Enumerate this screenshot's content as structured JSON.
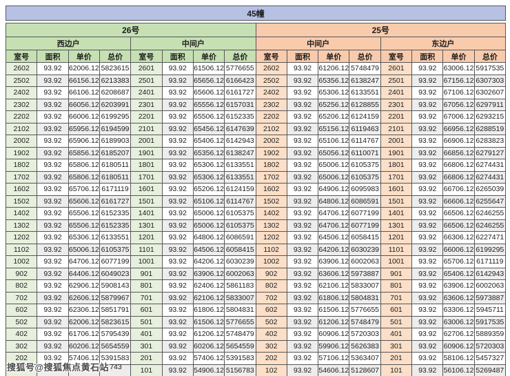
{
  "title": "45幢",
  "units": [
    {
      "label": "26号",
      "sides": [
        "西边户",
        "中间户"
      ]
    },
    {
      "label": "25号",
      "sides": [
        "中间户",
        "东边户"
      ]
    }
  ],
  "column_headers": [
    "室号",
    "面积",
    "单价",
    "总价"
  ],
  "watermark": {
    "text": "搜狐号@搜狐焦点黄石站",
    "visible_digits": "743"
  },
  "colors": {
    "page_bg": "#ffffff",
    "title_bg": "#b7c1e3",
    "green_header_bg": "#c6e0b4",
    "green_room_bg": "#e7f0dd",
    "peach_header_bg": "#f8cbad",
    "peach_room_bg": "#fbdfc8",
    "stripe_bg": "#ededed",
    "border": "#555555",
    "text": "#1c1c1c",
    "watermark_color": "#4a4a4a"
  },
  "rows": [
    [
      "2602",
      "93.92",
      "62006.12",
      "5823615",
      "2601",
      "93.92",
      "61506.12",
      "5776655",
      "2602",
      "93.92",
      "61206.12",
      "5748479",
      "2601",
      "93.92",
      "63006.12",
      "5917535"
    ],
    [
      "2502",
      "93.92",
      "66156.12",
      "6213383",
      "2501",
      "93.92",
      "65656.12",
      "6166423",
      "2502",
      "93.92",
      "65356.12",
      "6138247",
      "2501",
      "93.92",
      "67156.12",
      "6307303"
    ],
    [
      "2402",
      "93.92",
      "66106.12",
      "6208687",
      "2401",
      "93.92",
      "65606.12",
      "6161727",
      "2402",
      "93.92",
      "65306.12",
      "6133551",
      "2401",
      "93.92",
      "67106.12",
      "6302607"
    ],
    [
      "2302",
      "93.92",
      "66056.12",
      "6203991",
      "2301",
      "93.92",
      "65556.12",
      "6157031",
      "2302",
      "93.92",
      "65256.12",
      "6128855",
      "2301",
      "93.92",
      "67056.12",
      "6297911"
    ],
    [
      "2202",
      "93.92",
      "66006.12",
      "6199295",
      "2201",
      "93.92",
      "65506.12",
      "6152335",
      "2202",
      "93.92",
      "65206.12",
      "6124159",
      "2201",
      "93.92",
      "67006.12",
      "6293215"
    ],
    [
      "2102",
      "93.92",
      "65956.12",
      "6194599",
      "2101",
      "93.92",
      "65456.12",
      "6147639",
      "2102",
      "93.92",
      "65156.12",
      "6119463",
      "2101",
      "93.92",
      "66956.12",
      "6288519"
    ],
    [
      "2002",
      "93.92",
      "65906.12",
      "6189903",
      "2001",
      "93.92",
      "65406.12",
      "6142943",
      "2002",
      "93.92",
      "65106.12",
      "6114767",
      "2001",
      "93.92",
      "66906.12",
      "6283823"
    ],
    [
      "1902",
      "93.92",
      "65856.12",
      "6185207",
      "1901",
      "93.92",
      "65356.12",
      "6138247",
      "1902",
      "93.92",
      "65056.12",
      "6110071",
      "1901",
      "93.92",
      "66856.12",
      "6279127"
    ],
    [
      "1802",
      "93.92",
      "65806.12",
      "6180511",
      "1801",
      "93.92",
      "65306.12",
      "6133551",
      "1802",
      "93.92",
      "65006.12",
      "6105375",
      "1801",
      "93.92",
      "66806.12",
      "6274431"
    ],
    [
      "1702",
      "93.92",
      "65806.12",
      "6180511",
      "1701",
      "93.92",
      "65306.12",
      "6133551",
      "1702",
      "93.92",
      "65006.12",
      "6105375",
      "1701",
      "93.92",
      "66806.12",
      "6274431"
    ],
    [
      "1602",
      "93.92",
      "65706.12",
      "6171119",
      "1601",
      "93.92",
      "65206.12",
      "6124159",
      "1602",
      "93.92",
      "64906.12",
      "6095983",
      "1601",
      "93.92",
      "66706.12",
      "6265039"
    ],
    [
      "1502",
      "93.92",
      "65606.12",
      "6161727",
      "1501",
      "93.92",
      "65106.12",
      "6114767",
      "1502",
      "93.92",
      "64806.12",
      "6086591",
      "1501",
      "93.92",
      "66606.12",
      "6255647"
    ],
    [
      "1402",
      "93.92",
      "65506.12",
      "6152335",
      "1401",
      "93.92",
      "65006.12",
      "6105375",
      "1402",
      "93.92",
      "64706.12",
      "6077199",
      "1401",
      "93.92",
      "66506.12",
      "6246255"
    ],
    [
      "1302",
      "93.92",
      "65506.12",
      "6152335",
      "1301",
      "93.92",
      "65006.12",
      "6105375",
      "1302",
      "93.92",
      "64706.12",
      "6077199",
      "1301",
      "93.92",
      "66506.12",
      "6246255"
    ],
    [
      "1202",
      "93.92",
      "65306.12",
      "6133551",
      "1201",
      "93.92",
      "64806.12",
      "6086591",
      "1202",
      "93.92",
      "64506.12",
      "6058415",
      "1201",
      "93.92",
      "66306.12",
      "6227471"
    ],
    [
      "1102",
      "93.92",
      "65006.12",
      "6105375",
      "1101",
      "93.92",
      "64506.12",
      "6058415",
      "1102",
      "93.92",
      "64206.12",
      "6030239",
      "1101",
      "93.92",
      "66006.12",
      "6199295"
    ],
    [
      "1002",
      "93.92",
      "64706.12",
      "6077199",
      "1001",
      "93.92",
      "64206.12",
      "6030239",
      "1002",
      "93.92",
      "63906.12",
      "6002063",
      "1001",
      "93.92",
      "65706.12",
      "6171119"
    ],
    [
      "902",
      "93.92",
      "64406.12",
      "6049023",
      "901",
      "93.92",
      "63906.12",
      "6002063",
      "902",
      "93.92",
      "63606.12",
      "5973887",
      "901",
      "93.92",
      "65406.12",
      "6142943"
    ],
    [
      "802",
      "93.92",
      "62906.12",
      "5908143",
      "801",
      "93.92",
      "62406.12",
      "5861183",
      "802",
      "93.92",
      "62106.12",
      "5833007",
      "801",
      "93.92",
      "63906.12",
      "6002063"
    ],
    [
      "702",
      "93.92",
      "62606.12",
      "5879967",
      "701",
      "93.92",
      "62106.12",
      "5833007",
      "702",
      "93.92",
      "61806.12",
      "5804831",
      "701",
      "93.92",
      "63606.12",
      "5973887"
    ],
    [
      "602",
      "93.92",
      "62306.12",
      "5851791",
      "601",
      "93.92",
      "61806.12",
      "5804831",
      "602",
      "93.92",
      "61506.12",
      "5776655",
      "601",
      "93.92",
      "63306.12",
      "5945711"
    ],
    [
      "502",
      "93.92",
      "62006.12",
      "5823615",
      "501",
      "93.92",
      "61506.12",
      "5776655",
      "502",
      "93.92",
      "61206.12",
      "5748479",
      "501",
      "93.92",
      "63006.12",
      "5917535"
    ],
    [
      "402",
      "93.92",
      "61706.12",
      "5795439",
      "401",
      "93.92",
      "61206.12",
      "5748479",
      "402",
      "93.92",
      "60906.12",
      "5720303",
      "401",
      "93.92",
      "62706.12",
      "5889359"
    ],
    [
      "302",
      "93.92",
      "60206.12",
      "5654559",
      "301",
      "93.92",
      "60206.12",
      "5654559",
      "302",
      "93.92",
      "59906.12",
      "5626383",
      "301",
      "93.92",
      "60906.12",
      "5720303"
    ],
    [
      "202",
      "93.92",
      "57406.12",
      "5391583",
      "201",
      "93.92",
      "57406.12",
      "5391583",
      "202",
      "93.92",
      "57106.12",
      "5363407",
      "201",
      "93.92",
      "58106.12",
      "5457327"
    ],
    [
      "",
      "",
      "",
      "",
      "101",
      "93.92",
      "54906.12",
      "5156783",
      "102",
      "93.92",
      "54606.12",
      "5128607",
      "101",
      "93.92",
      "56106.12",
      "5269487"
    ]
  ]
}
